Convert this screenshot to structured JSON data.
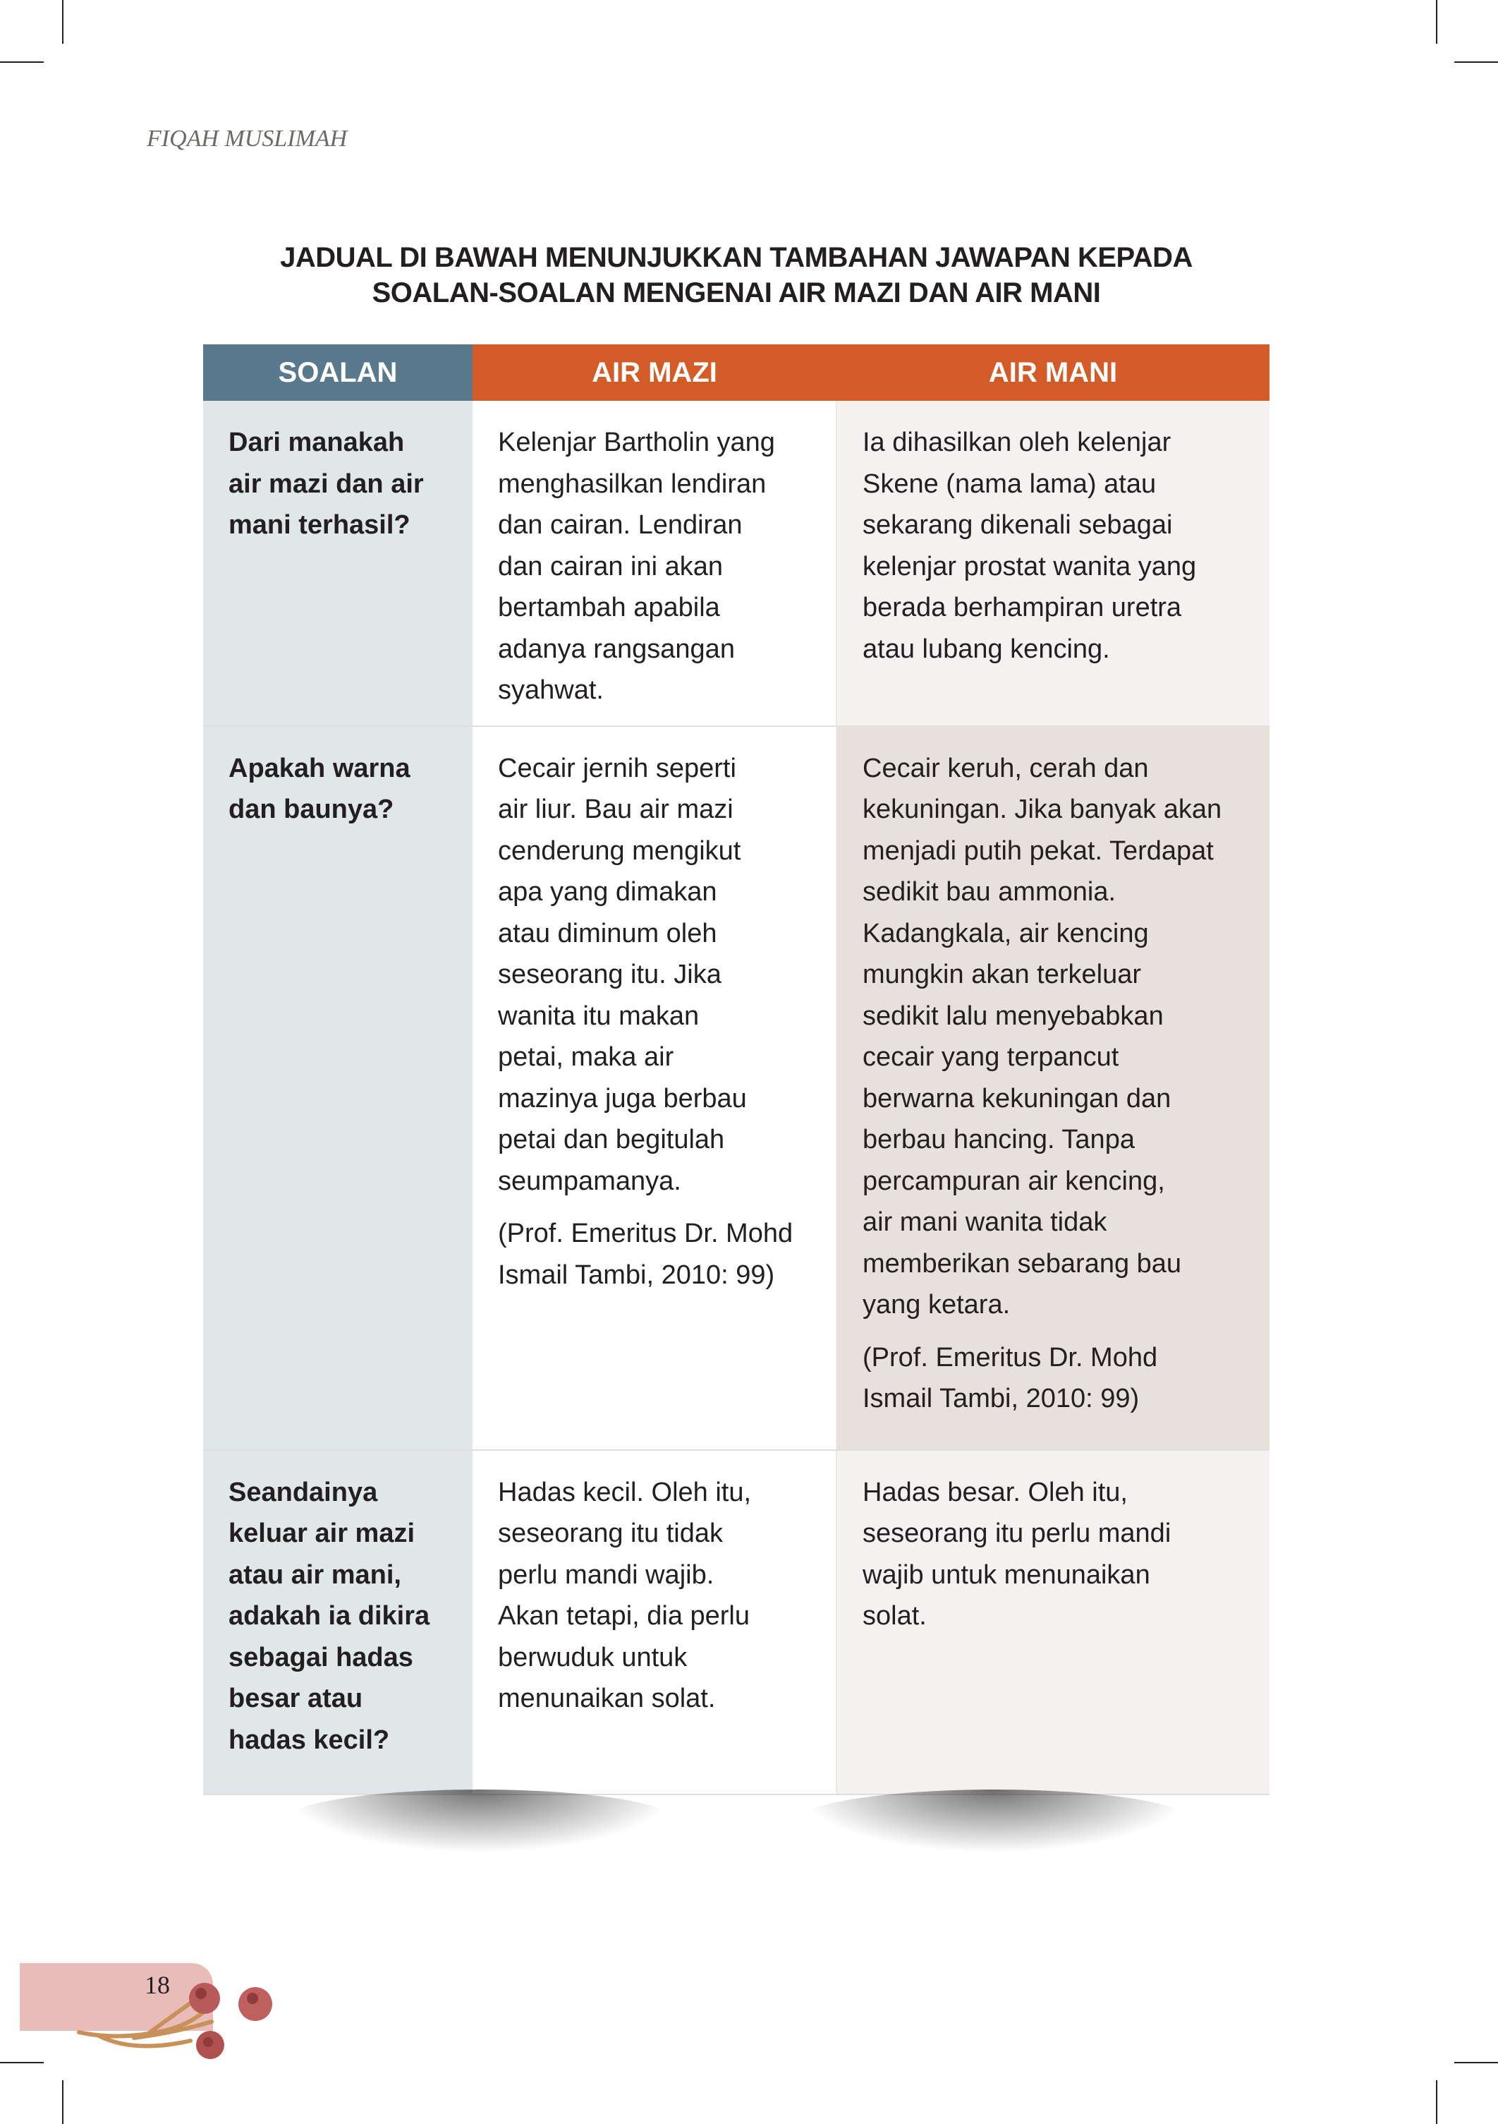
{
  "running_header": "FIQAH MUSLIMAH",
  "title": "JADUAL DI BAWAH MENUNJUKKAN TAMBAHAN JAWAPAN KEPADA\nSOALAN-SOALAN MENGENAI AIR MAZI DAN AIR MANI",
  "table": {
    "headers": [
      "SOALAN",
      "AIR MAZI",
      "AIR MANI"
    ],
    "header_colors": [
      "#587a8c",
      "#d35b27",
      "#d35b27"
    ],
    "rows": [
      {
        "soalan": "Dari manakah\nair mazi dan air\nmani terhasil?",
        "mazi": "Kelenjar Bartholin yang\nmenghasilkan lendiran\ndan cairan. Lendiran\ndan cairan ini akan\nbertambah apabila\nadanya rangsangan\nsyahwat.",
        "mani": "Ia dihasilkan oleh kelenjar\nSkene (nama lama) atau\nsekarang dikenali sebagai\nkelenjar prostat wanita yang\nberada berhampiran uretra\natau lubang kencing."
      },
      {
        "soalan": "Apakah warna\ndan baunya?",
        "mazi": "Cecair jernih seperti\nair liur. Bau air mazi\ncenderung mengikut\napa yang dimakan\natau diminum oleh\nseseorang itu. Jika\nwanita itu makan\npetai, maka air\nmazinya juga berbau\npetai dan begitulah\nseumpamanya.",
        "mazi_note": "(Prof. Emeritus Dr. Mohd\nIsmail Tambi, 2010: 99)",
        "mani": "Cecair keruh, cerah dan\nkekuningan. Jika banyak akan\nmenjadi putih pekat. Terdapat\nsedikit bau ammonia.\nKadangkala, air kencing\nmungkin akan terkeluar\nsedikit lalu menyebabkan\ncecair yang terpancut\nberwarna kekuningan dan\nberbau hancing. Tanpa\npercampuran air kencing,\nair mani wanita tidak\nmemberikan sebarang bau\nyang ketara.",
        "mani_note": "(Prof. Emeritus Dr. Mohd\nIsmail Tambi, 2010: 99)"
      },
      {
        "soalan": "Seandainya\nkeluar air mazi\natau air mani,\nadakah ia dikira\nsebagai hadas\nbesar atau\nhadas kecil?",
        "mazi": "Hadas kecil. Oleh itu,\nseseorang itu tidak\nperlu mandi wajib.\nAkan tetapi, dia perlu\nberwuduk untuk\nmenunaikan solat.",
        "mani": "Hadas besar. Oleh itu,\nseseorang itu perlu  mandi\nwajib untuk menunaikan\nsolat."
      }
    ]
  },
  "page_number": "18",
  "page_tab_color": "#e8bcb9",
  "decoration": "dried-flower-icon"
}
